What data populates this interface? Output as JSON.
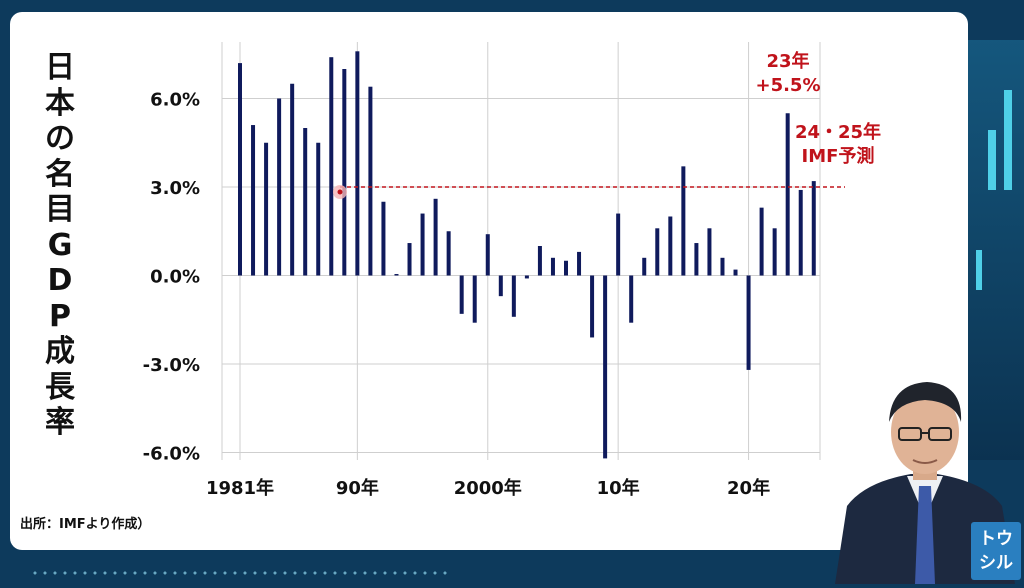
{
  "chart_title_vertical": [
    "日",
    "本",
    "の",
    "名",
    "目",
    "G",
    "D",
    "P",
    "成",
    "長",
    "率"
  ],
  "source_note": "出所：IMFより作成）",
  "logo_text": [
    "トウ",
    "シル"
  ],
  "colors": {
    "bar": "#0f1a5c",
    "accent": "#c0131b",
    "grid": "#cfcfcf",
    "panel": "#ffffff",
    "background": "#0d3a5c"
  },
  "chart_data": {
    "type": "bar",
    "title": "日本の名目GDP成長率",
    "x": [
      1981,
      1982,
      1983,
      1984,
      1985,
      1986,
      1987,
      1988,
      1989,
      1990,
      1991,
      1992,
      1993,
      1994,
      1995,
      1996,
      1997,
      1998,
      1999,
      2000,
      2001,
      2002,
      2003,
      2004,
      2005,
      2006,
      2007,
      2008,
      2009,
      2010,
      2011,
      2012,
      2013,
      2014,
      2015,
      2016,
      2017,
      2018,
      2019,
      2020,
      2021,
      2022,
      2023,
      2024,
      2025
    ],
    "values": [
      7.2,
      5.1,
      4.5,
      6.0,
      6.5,
      5.0,
      4.5,
      7.4,
      7.0,
      7.6,
      6.4,
      2.5,
      0.05,
      1.1,
      2.1,
      2.6,
      1.5,
      -1.3,
      -1.6,
      1.4,
      -0.7,
      -1.4,
      -0.1,
      1.0,
      0.6,
      0.5,
      0.8,
      -2.1,
      -6.2,
      2.1,
      -1.6,
      0.6,
      1.6,
      2.0,
      3.7,
      1.1,
      1.6,
      0.6,
      0.2,
      -3.2,
      2.3,
      1.6,
      5.5,
      2.9,
      3.2
    ],
    "y_tick_labels": [
      "6.0%",
      "3.0%",
      "0.0%",
      "-3.0%",
      "-6.0%"
    ],
    "y_ticks": [
      6,
      3,
      0,
      -3,
      -6
    ],
    "x_tick_labels": [
      {
        "year": 1981,
        "label": "1981年"
      },
      {
        "year": 1990,
        "label": "90年"
      },
      {
        "year": 2000,
        "label": "2000年"
      },
      {
        "year": 2010,
        "label": "10年"
      },
      {
        "year": 2020,
        "label": "20年"
      }
    ],
    "ylim": [
      -6.2,
      7.8
    ],
    "grid": true,
    "reference_line": {
      "value": 3.0,
      "style": "dashed",
      "color": "#c0131b"
    },
    "annotations": [
      {
        "year": 2023,
        "lines": [
          "23年",
          "+5.5%"
        ]
      },
      {
        "year": 2025,
        "lines": [
          "24・25年",
          "IMF予測"
        ]
      }
    ]
  }
}
